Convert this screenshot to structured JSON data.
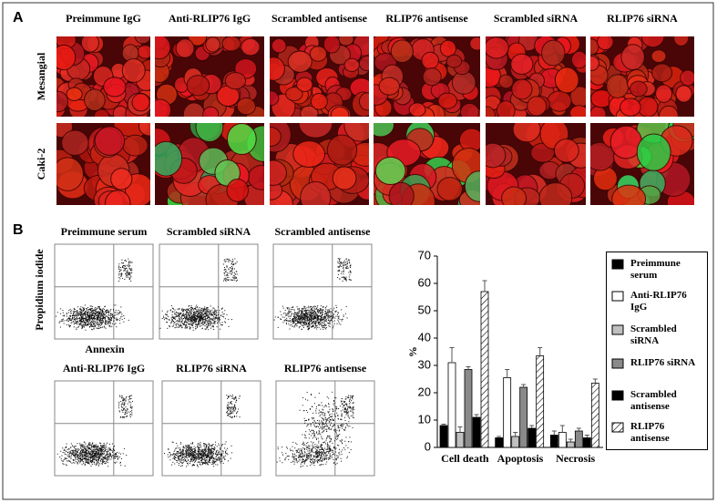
{
  "panel_a": {
    "label": "A",
    "columns": [
      "Preimmune IgG",
      "Anti-RLIP76 IgG",
      "Scrambled antisense",
      "RLIP76 antisense",
      "Scrambled siRNA",
      "RLIP76 siRNA"
    ],
    "rows": [
      "Mesangial",
      "Caki-2"
    ]
  },
  "panel_b": {
    "label": "B",
    "flow_plots": [
      "Preimmune serum",
      "Scrambled siRNA",
      "Scrambled antisense",
      "Anti-RLIP76 IgG",
      "RLIP76 siRNA",
      "RLIP76 antisense"
    ],
    "y_axis_label": "Propidium iodide",
    "x_axis_label": "Annexin"
  },
  "chart_data": {
    "type": "bar",
    "ylabel": "%",
    "categories": [
      "Cell death",
      "Apoptosis",
      "Necrosis"
    ],
    "series": [
      {
        "name": "Preimmune serum",
        "color": "#000000",
        "values": [
          8,
          3.5,
          4.5
        ],
        "errors": [
          0.5,
          0.5,
          1.5
        ]
      },
      {
        "name": "Anti-RLIP76 IgG",
        "color": "#ffffff",
        "values": [
          31,
          25.5,
          5.5
        ],
        "errors": [
          5.5,
          3,
          2.5
        ]
      },
      {
        "name": "Scrambled siRNA",
        "color": "#c0c0c0",
        "values": [
          5.5,
          4,
          2
        ],
        "errors": [
          2,
          1.5,
          1
        ]
      },
      {
        "name": "RLIP76 siRNA",
        "color": "#8a8a8a",
        "values": [
          28.5,
          22,
          6
        ],
        "errors": [
          1,
          1,
          1
        ]
      },
      {
        "name": "Scrambled antisense",
        "color": "#000000",
        "values": [
          11,
          7,
          3.5
        ],
        "errors": [
          1,
          1,
          1
        ]
      },
      {
        "name": "RLIP76 antisense",
        "color": "#ffffff",
        "hatch": true,
        "values": [
          57,
          33.5,
          23.5
        ],
        "errors": [
          4,
          3,
          1.5
        ]
      }
    ],
    "ylim": [
      0,
      70
    ],
    "yticks": [
      0,
      10,
      20,
      30,
      40,
      50,
      60,
      70
    ]
  }
}
